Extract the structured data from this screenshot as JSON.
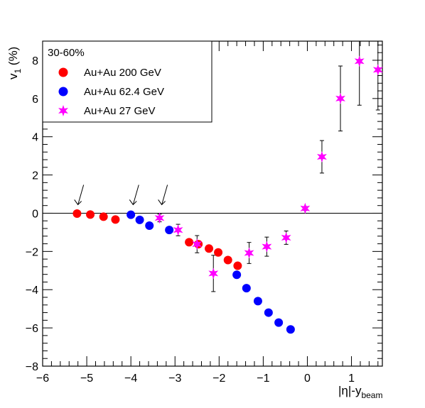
{
  "chart_data": {
    "type": "scatter",
    "title": "",
    "xlabel": "|η|-y",
    "xlabel_sub": "beam",
    "ylabel": "v",
    "ylabel_sub": "1",
    "ylabel_unit": " (%)",
    "xlim": [
      -6,
      1.7
    ],
    "ylim": [
      -8,
      9
    ],
    "x_ticks": [
      -6,
      -5,
      -4,
      -3,
      -2,
      -1,
      0,
      1
    ],
    "x_tick_labels": [
      "−6",
      "−5",
      "−4",
      "−3",
      "−2",
      "−1",
      "0",
      "1"
    ],
    "y_ticks": [
      -8,
      -6,
      -4,
      -2,
      0,
      2,
      4,
      6,
      8
    ],
    "y_tick_labels": [
      "−8",
      "−6",
      "−4",
      "−2",
      "0",
      "2",
      "4",
      "6",
      "8"
    ],
    "grid": false,
    "zero_line": 0,
    "legend": {
      "header": "30-60%",
      "placement": "top-left"
    },
    "arrows_at_x": [
      -5.2,
      -3.95,
      -3.3
    ],
    "series": [
      {
        "name": "Au+Au 200 GeV",
        "marker": "circle",
        "color": "#ff0000",
        "x": [
          -5.22,
          -4.92,
          -4.62,
          -4.35,
          -2.68,
          -2.47,
          -2.23,
          -2.02,
          -1.8,
          -1.58
        ],
        "y": [
          -0.02,
          -0.07,
          -0.18,
          -0.33,
          -1.52,
          -1.62,
          -1.85,
          -2.05,
          -2.45,
          -2.75
        ],
        "yerr": [
          0,
          0,
          0,
          0,
          0,
          0,
          0,
          0,
          0,
          0
        ]
      },
      {
        "name": "Au+Au 62.4 GeV",
        "marker": "circle",
        "color": "#0000ff",
        "x": [
          -4.0,
          -3.8,
          -3.58,
          -3.13,
          -1.6,
          -1.38,
          -1.12,
          -0.88,
          -0.65,
          -0.38
        ],
        "y": [
          -0.08,
          -0.35,
          -0.65,
          -0.88,
          -3.22,
          -3.92,
          -4.6,
          -5.2,
          -5.72,
          -6.08
        ],
        "yerr": [
          0,
          0,
          0,
          0,
          0.1,
          0,
          0,
          0,
          0,
          0
        ]
      },
      {
        "name": "Au+Au 27 GeV",
        "marker": "star",
        "color": "#ff00ff",
        "x": [
          -3.35,
          -2.93,
          -2.5,
          -2.13,
          -1.32,
          -0.92,
          -0.48,
          -0.05,
          0.33,
          0.75,
          1.18,
          1.6
        ],
        "y": [
          -0.25,
          -0.88,
          -1.62,
          -3.15,
          -2.08,
          -1.75,
          -1.28,
          0.25,
          2.95,
          6.0,
          7.95,
          7.5
        ],
        "yerr": [
          0.2,
          0.3,
          0.45,
          0.95,
          0.55,
          0.5,
          0.35,
          0.1,
          0.85,
          1.7,
          2.3,
          2.1
        ]
      }
    ]
  }
}
